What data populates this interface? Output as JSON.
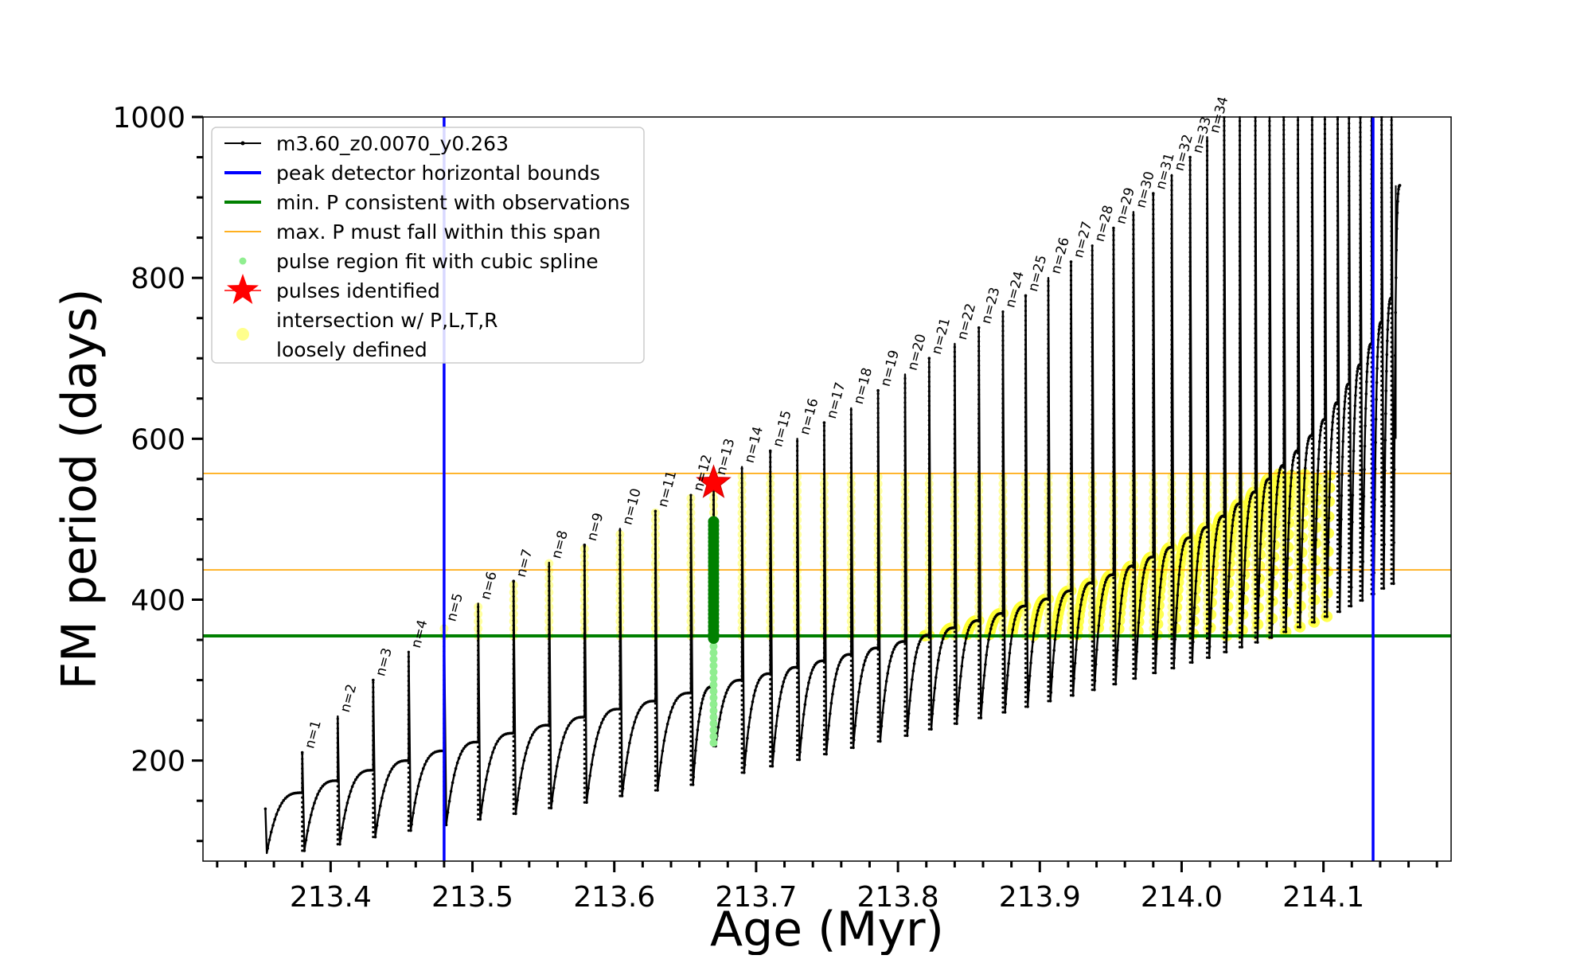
{
  "chart_data": {
    "type": "line",
    "xlabel": "Age (Myr)",
    "ylabel": "FM period (days)",
    "xlim": [
      213.31,
      214.19
    ],
    "ylim": [
      75,
      1000
    ],
    "x_major_ticks": [
      213.4,
      213.5,
      213.6,
      213.7,
      213.8,
      213.9,
      214.0,
      214.1
    ],
    "x_tick_labels": [
      "213.4",
      "213.5",
      "213.6",
      "213.7",
      "213.8",
      "213.9",
      "214.0",
      "214.1"
    ],
    "y_major_ticks": [
      200,
      400,
      600,
      800,
      1000
    ],
    "y_tick_labels": [
      "200",
      "400",
      "600",
      "800",
      "1000"
    ],
    "grid": false,
    "legend_position": "top-left",
    "legend": [
      {
        "label": "m3.60_z0.0070_y0.263",
        "style": "line-dot",
        "color": "#000000"
      },
      {
        "label": "peak detector horizontal bounds",
        "style": "line",
        "color": "#0000ff"
      },
      {
        "label": "min. P consistent with observations",
        "style": "line",
        "color": "#008000"
      },
      {
        "label": "max. P must fall within this span",
        "style": "thin-line",
        "color": "#ffa500"
      },
      {
        "label": "pulse region fit with cubic spline",
        "style": "dot",
        "color": "#90ee90"
      },
      {
        "label": "pulses identified",
        "style": "star",
        "color": "#ff0000"
      },
      {
        "label": "intersection w/ P,L,T,R",
        "label2": "loosely defined",
        "style": "circle",
        "color": "#ffff80"
      }
    ],
    "vertical_lines": {
      "x": [
        213.48,
        214.135
      ],
      "color": "#0000ff"
    },
    "horizontal_lines": [
      {
        "y": 355,
        "color": "#008000",
        "role": "min_period"
      },
      {
        "y": 437,
        "color": "#ffa500",
        "role": "max_span_low"
      },
      {
        "y": 557,
        "color": "#ffa500",
        "role": "max_span_high"
      }
    ],
    "track": {
      "start_age": 213.355,
      "pulses": [
        {
          "n": 1,
          "age": 213.38,
          "peak": 210,
          "pre": 160,
          "min": 88
        },
        {
          "n": 2,
          "age": 213.405,
          "peak": 255,
          "pre": 175,
          "min": 96
        },
        {
          "n": 3,
          "age": 213.43,
          "peak": 300,
          "pre": 188,
          "min": 105
        },
        {
          "n": 4,
          "age": 213.455,
          "peak": 335,
          "pre": 200,
          "min": 113
        },
        {
          "n": 5,
          "age": 213.48,
          "peak": 368,
          "pre": 212,
          "min": 120
        },
        {
          "n": 6,
          "age": 213.504,
          "peak": 395,
          "pre": 223,
          "min": 127
        },
        {
          "n": 7,
          "age": 213.529,
          "peak": 423,
          "pre": 234,
          "min": 134
        },
        {
          "n": 8,
          "age": 213.554,
          "peak": 446,
          "pre": 244,
          "min": 141
        },
        {
          "n": 9,
          "age": 213.579,
          "peak": 468,
          "pre": 254,
          "min": 148
        },
        {
          "n": 10,
          "age": 213.604,
          "peak": 488,
          "pre": 264,
          "min": 156
        },
        {
          "n": 11,
          "age": 213.629,
          "peak": 510,
          "pre": 274,
          "min": 163
        },
        {
          "n": 12,
          "age": 213.654,
          "peak": 530,
          "pre": 284,
          "min": 170
        },
        {
          "n": 13,
          "age": 213.67,
          "peak": 550,
          "pre": 292,
          "min": 218
        },
        {
          "n": 14,
          "age": 213.69,
          "peak": 565,
          "pre": 300,
          "min": 185
        },
        {
          "n": 15,
          "age": 213.71,
          "peak": 585,
          "pre": 308,
          "min": 193
        },
        {
          "n": 16,
          "age": 213.729,
          "peak": 600,
          "pre": 316,
          "min": 201
        },
        {
          "n": 17,
          "age": 213.748,
          "peak": 620,
          "pre": 324,
          "min": 208
        },
        {
          "n": 18,
          "age": 213.767,
          "peak": 638,
          "pre": 332,
          "min": 216
        },
        {
          "n": 19,
          "age": 213.786,
          "peak": 660,
          "pre": 340,
          "min": 224
        },
        {
          "n": 20,
          "age": 213.805,
          "peak": 680,
          "pre": 348,
          "min": 231
        },
        {
          "n": 21,
          "age": 213.822,
          "peak": 700,
          "pre": 356,
          "min": 239
        },
        {
          "n": 22,
          "age": 213.84,
          "peak": 718,
          "pre": 365,
          "min": 246
        },
        {
          "n": 23,
          "age": 213.857,
          "peak": 738,
          "pre": 374,
          "min": 253
        },
        {
          "n": 24,
          "age": 213.874,
          "peak": 758,
          "pre": 383,
          "min": 260
        },
        {
          "n": 25,
          "age": 213.89,
          "peak": 778,
          "pre": 392,
          "min": 267
        },
        {
          "n": 26,
          "age": 213.906,
          "peak": 800,
          "pre": 401,
          "min": 274
        },
        {
          "n": 27,
          "age": 213.922,
          "peak": 820,
          "pre": 411,
          "min": 281
        },
        {
          "n": 28,
          "age": 213.937,
          "peak": 840,
          "pre": 421,
          "min": 288
        },
        {
          "n": 29,
          "age": 213.952,
          "peak": 862,
          "pre": 431,
          "min": 295
        },
        {
          "n": 30,
          "age": 213.966,
          "peak": 882,
          "pre": 442,
          "min": 302
        },
        {
          "n": 31,
          "age": 213.98,
          "peak": 905,
          "pre": 453,
          "min": 309
        },
        {
          "n": 32,
          "age": 213.993,
          "peak": 928,
          "pre": 465,
          "min": 315
        },
        {
          "n": 33,
          "age": 214.006,
          "peak": 950,
          "pre": 477,
          "min": 322
        },
        {
          "n": 34,
          "age": 214.018,
          "peak": 975,
          "pre": 490,
          "min": 328
        },
        {
          "age": 214.03,
          "peak": 1000,
          "pre": 504,
          "min": 335
        },
        {
          "age": 214.041,
          "peak": 1000,
          "pre": 519,
          "min": 341
        },
        {
          "age": 214.052,
          "peak": 1000,
          "pre": 534,
          "min": 347
        },
        {
          "age": 214.062,
          "peak": 1000,
          "pre": 550,
          "min": 353
        },
        {
          "age": 214.072,
          "peak": 1000,
          "pre": 567,
          "min": 360
        },
        {
          "age": 214.082,
          "peak": 1000,
          "pre": 585,
          "min": 366
        },
        {
          "age": 214.092,
          "peak": 1000,
          "pre": 604,
          "min": 372
        },
        {
          "age": 214.101,
          "peak": 1000,
          "pre": 624,
          "min": 379
        },
        {
          "age": 214.11,
          "peak": 1000,
          "pre": 645,
          "min": 385
        },
        {
          "age": 214.118,
          "peak": 1000,
          "pre": 668,
          "min": 392
        },
        {
          "age": 214.126,
          "peak": 1000,
          "pre": 692,
          "min": 399
        },
        {
          "age": 214.134,
          "peak": 1000,
          "pre": 718,
          "min": 407
        },
        {
          "age": 214.141,
          "peak": 1000,
          "pre": 745,
          "min": 414
        },
        {
          "age": 214.148,
          "peak": 1000,
          "pre": 775,
          "min": 420
        }
      ],
      "end": {
        "age": 214.154,
        "period": 915
      },
      "tail_min": 600
    },
    "identified_pulse": {
      "n": 13,
      "age": 213.67,
      "period": 545
    },
    "spline_fit_region": {
      "age": 213.67,
      "y_range": [
        222,
        500
      ]
    },
    "loose_intersections": {
      "y_range": [
        355,
        557
      ],
      "pulse_range": [
        5,
        42
      ],
      "ramp_start_age": 213.805,
      "ramp_end_age": 214.033
    }
  }
}
